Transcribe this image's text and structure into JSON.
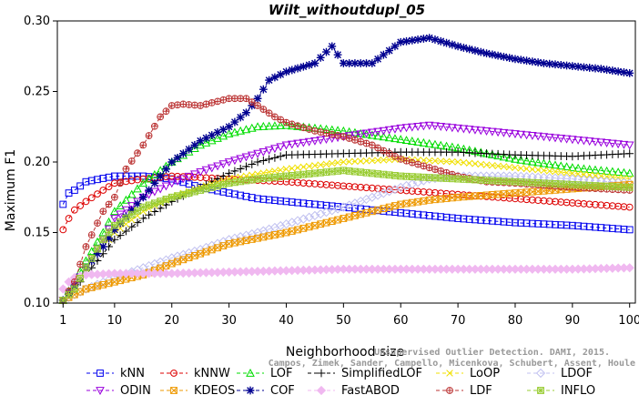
{
  "chart_data": {
    "type": "line",
    "title": "Wilt_withoutdupl_05",
    "xlabel": "Neighborhood size",
    "ylabel": "Maximum F1",
    "xlim": [
      0,
      101
    ],
    "ylim": [
      0.1,
      0.3
    ],
    "xticks": [
      "1",
      "10",
      "20",
      "30",
      "40",
      "50",
      "60",
      "70",
      "80",
      "90",
      "100"
    ],
    "yticks": [
      "0.10",
      "0.15",
      "0.20",
      "0.25",
      "0.30"
    ],
    "grid": false,
    "legend_position": "bottom",
    "watermark": [
      "Unsupervised Outlier Detection. DAMI, 2015.",
      "Campos, Zimek, Sander, Campello, Micenkova, Schubert, Assent, Houle"
    ],
    "series": [
      {
        "name": "kNN",
        "color": "#0000ee",
        "marker": "square",
        "points": [
          [
            1,
            0.17
          ],
          [
            2,
            0.178
          ],
          [
            3,
            0.18
          ],
          [
            5,
            0.186
          ],
          [
            10,
            0.19
          ],
          [
            15,
            0.19
          ],
          [
            20,
            0.188
          ],
          [
            25,
            0.182
          ],
          [
            30,
            0.178
          ],
          [
            35,
            0.174
          ],
          [
            40,
            0.172
          ],
          [
            50,
            0.168
          ],
          [
            60,
            0.164
          ],
          [
            70,
            0.16
          ],
          [
            80,
            0.157
          ],
          [
            90,
            0.155
          ],
          [
            100,
            0.152
          ]
        ]
      },
      {
        "name": "kNNW",
        "color": "#dd0000",
        "marker": "circle",
        "points": [
          [
            1,
            0.152
          ],
          [
            2,
            0.16
          ],
          [
            3,
            0.166
          ],
          [
            5,
            0.172
          ],
          [
            8,
            0.18
          ],
          [
            10,
            0.185
          ],
          [
            15,
            0.188
          ],
          [
            20,
            0.19
          ],
          [
            25,
            0.189
          ],
          [
            30,
            0.188
          ],
          [
            40,
            0.186
          ],
          [
            50,
            0.183
          ],
          [
            60,
            0.18
          ],
          [
            70,
            0.177
          ],
          [
            80,
            0.174
          ],
          [
            90,
            0.171
          ],
          [
            100,
            0.168
          ]
        ]
      },
      {
        "name": "LOF",
        "color": "#00dd00",
        "marker": "triangle-up",
        "points": [
          [
            1,
            0.102
          ],
          [
            3,
            0.115
          ],
          [
            5,
            0.13
          ],
          [
            8,
            0.15
          ],
          [
            10,
            0.165
          ],
          [
            15,
            0.185
          ],
          [
            20,
            0.2
          ],
          [
            25,
            0.212
          ],
          [
            30,
            0.22
          ],
          [
            35,
            0.225
          ],
          [
            40,
            0.226
          ],
          [
            45,
            0.224
          ],
          [
            50,
            0.222
          ],
          [
            60,
            0.216
          ],
          [
            70,
            0.21
          ],
          [
            80,
            0.202
          ],
          [
            90,
            0.196
          ],
          [
            100,
            0.192
          ]
        ]
      },
      {
        "name": "SimplifiedLOF",
        "color": "#000000",
        "marker": "plus",
        "points": [
          [
            1,
            0.102
          ],
          [
            3,
            0.11
          ],
          [
            5,
            0.12
          ],
          [
            8,
            0.135
          ],
          [
            10,
            0.145
          ],
          [
            15,
            0.16
          ],
          [
            20,
            0.172
          ],
          [
            25,
            0.182
          ],
          [
            30,
            0.192
          ],
          [
            35,
            0.2
          ],
          [
            40,
            0.205
          ],
          [
            50,
            0.206
          ],
          [
            60,
            0.207
          ],
          [
            70,
            0.207
          ],
          [
            80,
            0.205
          ],
          [
            90,
            0.204
          ],
          [
            100,
            0.206
          ]
        ]
      },
      {
        "name": "LoOP",
        "color": "#f0e000",
        "marker": "cross",
        "points": [
          [
            1,
            0.102
          ],
          [
            3,
            0.112
          ],
          [
            5,
            0.125
          ],
          [
            8,
            0.14
          ],
          [
            10,
            0.15
          ],
          [
            15,
            0.165
          ],
          [
            20,
            0.175
          ],
          [
            25,
            0.182
          ],
          [
            30,
            0.188
          ],
          [
            40,
            0.195
          ],
          [
            50,
            0.2
          ],
          [
            60,
            0.202
          ],
          [
            70,
            0.2
          ],
          [
            80,
            0.196
          ],
          [
            90,
            0.192
          ],
          [
            100,
            0.188
          ]
        ]
      },
      {
        "name": "LDOF",
        "color": "#c0c0f0",
        "marker": "diamond",
        "points": [
          [
            1,
            0.102
          ],
          [
            5,
            0.11
          ],
          [
            10,
            0.118
          ],
          [
            15,
            0.125
          ],
          [
            20,
            0.132
          ],
          [
            25,
            0.138
          ],
          [
            30,
            0.145
          ],
          [
            35,
            0.15
          ],
          [
            40,
            0.156
          ],
          [
            50,
            0.168
          ],
          [
            60,
            0.182
          ],
          [
            65,
            0.188
          ],
          [
            70,
            0.19
          ],
          [
            80,
            0.19
          ],
          [
            90,
            0.188
          ],
          [
            100,
            0.185
          ]
        ]
      },
      {
        "name": "ODIN",
        "color": "#9900dd",
        "marker": "triangle-down",
        "points": [
          [
            1,
            0.102
          ],
          [
            3,
            0.112
          ],
          [
            5,
            0.125
          ],
          [
            8,
            0.145
          ],
          [
            10,
            0.16
          ],
          [
            15,
            0.175
          ],
          [
            20,
            0.185
          ],
          [
            25,
            0.193
          ],
          [
            30,
            0.2
          ],
          [
            35,
            0.206
          ],
          [
            40,
            0.212
          ],
          [
            50,
            0.218
          ],
          [
            60,
            0.224
          ],
          [
            65,
            0.226
          ],
          [
            70,
            0.224
          ],
          [
            80,
            0.22
          ],
          [
            90,
            0.216
          ],
          [
            100,
            0.212
          ]
        ]
      },
      {
        "name": "KDEOS",
        "color": "#ee9900",
        "marker": "square-x",
        "points": [
          [
            1,
            0.102
          ],
          [
            3,
            0.106
          ],
          [
            5,
            0.11
          ],
          [
            10,
            0.115
          ],
          [
            15,
            0.12
          ],
          [
            20,
            0.128
          ],
          [
            25,
            0.135
          ],
          [
            30,
            0.142
          ],
          [
            35,
            0.146
          ],
          [
            40,
            0.15
          ],
          [
            45,
            0.155
          ],
          [
            50,
            0.16
          ],
          [
            55,
            0.165
          ],
          [
            60,
            0.17
          ],
          [
            65,
            0.173
          ],
          [
            70,
            0.175
          ],
          [
            80,
            0.178
          ],
          [
            90,
            0.181
          ],
          [
            100,
            0.184
          ]
        ]
      },
      {
        "name": "COF",
        "color": "#000090",
        "marker": "star",
        "points": [
          [
            1,
            0.102
          ],
          [
            3,
            0.112
          ],
          [
            5,
            0.125
          ],
          [
            8,
            0.14
          ],
          [
            10,
            0.152
          ],
          [
            15,
            0.175
          ],
          [
            20,
            0.2
          ],
          [
            25,
            0.215
          ],
          [
            30,
            0.225
          ],
          [
            33,
            0.235
          ],
          [
            35,
            0.245
          ],
          [
            37,
            0.258
          ],
          [
            40,
            0.264
          ],
          [
            45,
            0.27
          ],
          [
            48,
            0.282
          ],
          [
            50,
            0.27
          ],
          [
            55,
            0.27
          ],
          [
            60,
            0.285
          ],
          [
            65,
            0.288
          ],
          [
            70,
            0.282
          ],
          [
            75,
            0.277
          ],
          [
            80,
            0.273
          ],
          [
            85,
            0.27
          ],
          [
            90,
            0.268
          ],
          [
            95,
            0.266
          ],
          [
            100,
            0.263
          ]
        ]
      },
      {
        "name": "FastABOD",
        "color": "#f0b8f0",
        "marker": "diamond-filled",
        "points": [
          [
            1,
            0.11
          ],
          [
            2,
            0.115
          ],
          [
            3,
            0.118
          ],
          [
            5,
            0.12
          ],
          [
            10,
            0.121
          ],
          [
            20,
            0.121
          ],
          [
            30,
            0.122
          ],
          [
            40,
            0.123
          ],
          [
            50,
            0.124
          ],
          [
            60,
            0.124
          ],
          [
            70,
            0.124
          ],
          [
            80,
            0.124
          ],
          [
            90,
            0.124
          ],
          [
            100,
            0.125
          ]
        ]
      },
      {
        "name": "LDF",
        "color": "#bb3333",
        "marker": "circle-plus",
        "points": [
          [
            1,
            0.102
          ],
          [
            3,
            0.115
          ],
          [
            5,
            0.14
          ],
          [
            8,
            0.165
          ],
          [
            10,
            0.175
          ],
          [
            12,
            0.195
          ],
          [
            15,
            0.212
          ],
          [
            18,
            0.232
          ],
          [
            20,
            0.24
          ],
          [
            22,
            0.241
          ],
          [
            25,
            0.24
          ],
          [
            30,
            0.245
          ],
          [
            33,
            0.245
          ],
          [
            35,
            0.24
          ],
          [
            38,
            0.232
          ],
          [
            40,
            0.228
          ],
          [
            45,
            0.222
          ],
          [
            50,
            0.218
          ],
          [
            55,
            0.212
          ],
          [
            60,
            0.202
          ],
          [
            65,
            0.196
          ],
          [
            70,
            0.19
          ],
          [
            75,
            0.186
          ],
          [
            80,
            0.185
          ],
          [
            90,
            0.182
          ],
          [
            100,
            0.18
          ]
        ]
      },
      {
        "name": "INFLO",
        "color": "#99cc33",
        "marker": "square-star",
        "points": [
          [
            1,
            0.102
          ],
          [
            3,
            0.11
          ],
          [
            5,
            0.125
          ],
          [
            8,
            0.145
          ],
          [
            10,
            0.155
          ],
          [
            15,
            0.168
          ],
          [
            20,
            0.175
          ],
          [
            25,
            0.18
          ],
          [
            30,
            0.185
          ],
          [
            35,
            0.188
          ],
          [
            40,
            0.19
          ],
          [
            45,
            0.192
          ],
          [
            50,
            0.194
          ],
          [
            60,
            0.19
          ],
          [
            70,
            0.188
          ],
          [
            80,
            0.186
          ],
          [
            90,
            0.184
          ],
          [
            100,
            0.182
          ]
        ]
      }
    ]
  }
}
